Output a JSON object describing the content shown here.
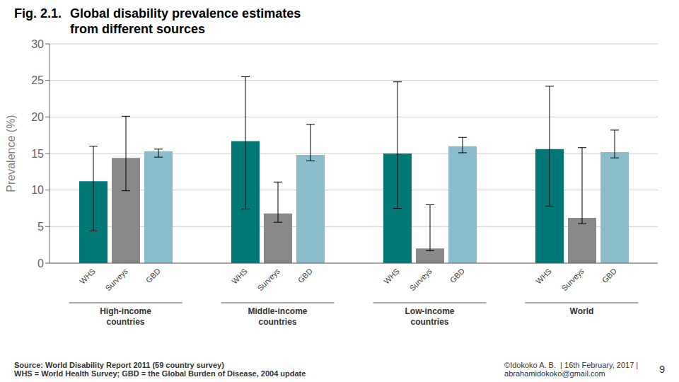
{
  "chart_data": {
    "type": "bar",
    "title": "Global disability prevalence estimates\nfrom different sources",
    "ylabel": "Prevalence (%)",
    "categories": [
      "High-income\ncountries",
      "Middle-income\ncountries",
      "Low-income\ncountries",
      "World"
    ],
    "series": [
      {
        "name": "WHS",
        "color": "#007878",
        "values": [
          11.2,
          16.7,
          15.0,
          15.6
        ],
        "errors_low": [
          6.8,
          9.3,
          7.5,
          7.8
        ],
        "errors_high": [
          4.8,
          8.8,
          9.8,
          8.6
        ]
      },
      {
        "name": "Surveys",
        "color": "#888888",
        "values": [
          14.4,
          6.8,
          2.0,
          6.2
        ],
        "errors_low": [
          4.5,
          1.2,
          0.3,
          0.8
        ],
        "errors_high": [
          5.7,
          4.3,
          6.0,
          9.6
        ]
      },
      {
        "name": "GBD",
        "color": "#8bbccc",
        "values": [
          15.3,
          14.8,
          16.0,
          15.2
        ],
        "errors_low": [
          0.8,
          0.8,
          0.9,
          0.8
        ],
        "errors_high": [
          0.3,
          4.2,
          1.2,
          3.0
        ]
      }
    ],
    "ylim": [
      0,
      30
    ],
    "yticks": [
      0,
      5,
      10,
      15,
      20,
      25,
      30
    ],
    "grid": true,
    "annotations": [
      "Fig. 2.1.",
      "Source: World Disability Report 2011 (59 country survey)",
      "WHS = World Health Survey; GBD = the Global Burden of Disease, 2004 update",
      "©Idokoko A. B.  | 16th February, 2017 |",
      "abrahamidokoko@gmail.com",
      "9"
    ]
  }
}
